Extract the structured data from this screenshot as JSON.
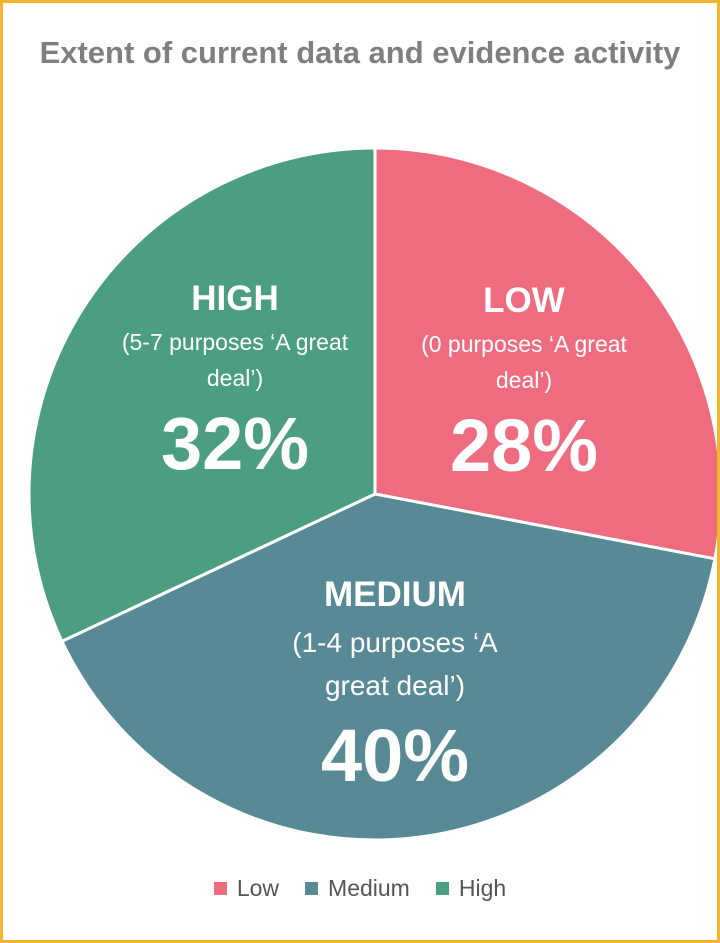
{
  "chart_data": {
    "type": "pie",
    "title": "Extent of current data and evidence activity",
    "categories": [
      "Low",
      "Medium",
      "High"
    ],
    "values": [
      28,
      40,
      32
    ],
    "value_labels": [
      "28%",
      "40%",
      "32%"
    ],
    "slice_titles": [
      "LOW",
      "MEDIUM",
      "HIGH"
    ],
    "slice_notes": [
      "(0 purposes ‘A great deal’)",
      "(1-4 purposes ‘A great deal’)",
      "(5-7 purposes ‘A great deal’)"
    ],
    "colors": [
      "#ef6b7f",
      "#578a94",
      "#4b9e80"
    ],
    "legend": "bottom"
  }
}
